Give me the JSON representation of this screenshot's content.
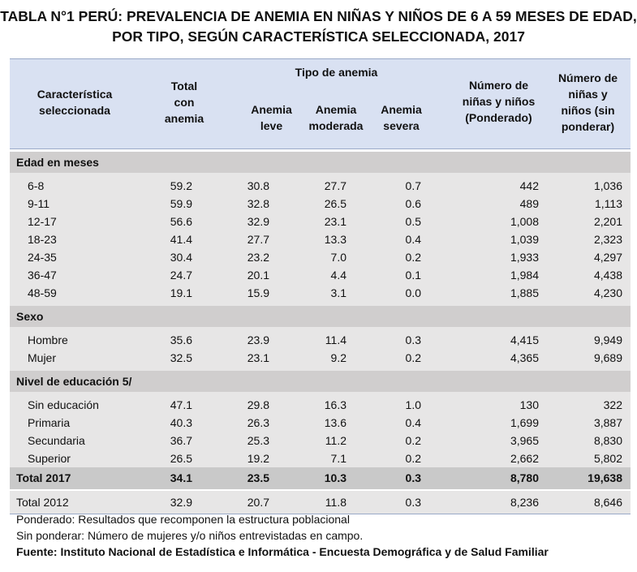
{
  "title_line1": "TABLA N°1 PERÚ: PREVALENCIA DE ANEMIA EN NIÑAS Y NIÑOS DE 6 A 59 MESES DE EDAD,",
  "title_line2": "POR TIPO, SEGÚN CARACTERÍSTICA SELECCIONADA, 2017",
  "headers": {
    "caracteristica": "Característica\nseleccionada",
    "total": "Total\ncon\nanemia",
    "tipo": "Tipo de anemia",
    "leve": "Anemia\nleve",
    "moderada": "Anemia\nmoderada",
    "severa": "Anemia\nsevera",
    "ponderado": "Número de\nniñas y niños\n(Ponderado)",
    "sin_ponderar": "Número de\nniñas y\nniños (sin\nponderar)"
  },
  "sections": {
    "edad": "Edad en meses",
    "sexo": "Sexo",
    "nivel": "Nivel de educación 5/"
  },
  "rows": [
    {
      "label": "6-8",
      "total": "59.2",
      "leve": "30.8",
      "moderada": "27.7",
      "severa": "0.7",
      "pond": "442",
      "sinpond": "1,036"
    },
    {
      "label": "9-11",
      "total": "59.9",
      "leve": "32.8",
      "moderada": "26.5",
      "severa": "0.6",
      "pond": "489",
      "sinpond": "1,113"
    },
    {
      "label": "12-17",
      "total": "56.6",
      "leve": "32.9",
      "moderada": "23.1",
      "severa": "0.5",
      "pond": "1,008",
      "sinpond": "2,201"
    },
    {
      "label": "18-23",
      "total": "41.4",
      "leve": "27.7",
      "moderada": "13.3",
      "severa": "0.4",
      "pond": "1,039",
      "sinpond": "2,323"
    },
    {
      "label": "24-35",
      "total": "30.4",
      "leve": "23.2",
      "moderada": "7.0",
      "severa": "0.2",
      "pond": "1,933",
      "sinpond": "4,297"
    },
    {
      "label": "36-47",
      "total": "24.7",
      "leve": "20.1",
      "moderada": "4.4",
      "severa": "0.1",
      "pond": "1,984",
      "sinpond": "4,438"
    },
    {
      "label": "48-59",
      "total": "19.1",
      "leve": "15.9",
      "moderada": "3.1",
      "severa": "0.0",
      "pond": "1,885",
      "sinpond": "4,230"
    },
    {
      "label": "Hombre",
      "total": "35.6",
      "leve": "23.9",
      "moderada": "11.4",
      "severa": "0.3",
      "pond": "4,415",
      "sinpond": "9,949"
    },
    {
      "label": "Mujer",
      "total": "32.5",
      "leve": "23.1",
      "moderada": "9.2",
      "severa": "0.2",
      "pond": "4,365",
      "sinpond": "9,689"
    },
    {
      "label": "Sin educación",
      "total": "47.1",
      "leve": "29.8",
      "moderada": "16.3",
      "severa": "1.0",
      "pond": "130",
      "sinpond": "322"
    },
    {
      "label": "Primaria",
      "total": "40.3",
      "leve": "26.3",
      "moderada": "13.6",
      "severa": "0.4",
      "pond": "1,699",
      "sinpond": "3,887"
    },
    {
      "label": "Secundaria",
      "total": "36.7",
      "leve": "25.3",
      "moderada": "11.2",
      "severa": "0.2",
      "pond": "3,965",
      "sinpond": "8,830"
    },
    {
      "label": "Superior",
      "total": "26.5",
      "leve": "19.2",
      "moderada": "7.1",
      "severa": "0.2",
      "pond": "2,662",
      "sinpond": "5,802"
    },
    {
      "label": "Total 2017",
      "total": "34.1",
      "leve": "23.5",
      "moderada": "10.3",
      "severa": "0.3",
      "pond": "8,780",
      "sinpond": "19,638"
    },
    {
      "label": "Total 2012",
      "total": "32.9",
      "leve": "20.7",
      "moderada": "11.8",
      "severa": "0.3",
      "pond": "8,236",
      "sinpond": "8,646"
    }
  ],
  "notes": {
    "ponderado": "Ponderado: Resultados que recomponen la estructura poblacional",
    "sin_ponderar": "Sin ponderar: Número de mujeres y/o niños entrevistadas en campo.",
    "fuente": "Fuente: Instituto Nacional de Estadística e Informática - Encuesta Demográfica y de Salud Familiar"
  },
  "colors": {
    "header_bg": "#d9e1f2",
    "section_bg": "#d0cece",
    "row_bg": "#e7e6e6",
    "total_bg": "#c9c9c9"
  }
}
